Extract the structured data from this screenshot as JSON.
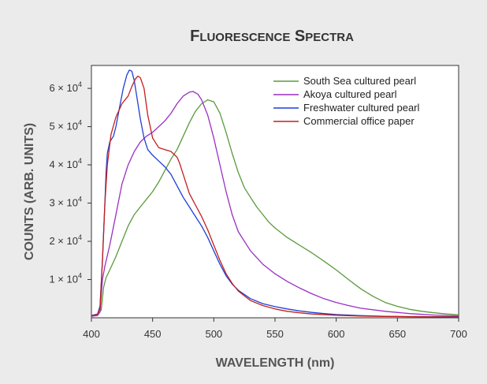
{
  "chart_data": {
    "type": "line",
    "title": "FLUORESCENCE SPECTRA",
    "xlabel": "WAVELENGTH (nm)",
    "ylabel": "COUNTS (ARB. UNITS)",
    "xlim": [
      400,
      700
    ],
    "ylim": [
      0,
      66000
    ],
    "x_ticks": [
      "400",
      "450",
      "500",
      "550",
      "600",
      "650",
      "700"
    ],
    "y_ticks": [
      {
        "value": 10000,
        "mantissa": "1 × 10",
        "exp": "4"
      },
      {
        "value": 20000,
        "mantissa": "2 × 10",
        "exp": "4"
      },
      {
        "value": 30000,
        "mantissa": "3 × 10",
        "exp": "4"
      },
      {
        "value": 40000,
        "mantissa": "4 × 10",
        "exp": "4"
      },
      {
        "value": 50000,
        "mantissa": "5 × 10",
        "exp": "4"
      },
      {
        "value": 60000,
        "mantissa": "6 × 10",
        "exp": "4"
      }
    ],
    "grid": false,
    "legend_position": "top-right",
    "series": [
      {
        "name": "South Sea cultured pearl",
        "color": "#5a9a3c",
        "points": [
          [
            400,
            500
          ],
          [
            405,
            800
          ],
          [
            408,
            2000
          ],
          [
            410,
            8000
          ],
          [
            412,
            10500
          ],
          [
            415,
            12500
          ],
          [
            420,
            16000
          ],
          [
            425,
            20000
          ],
          [
            430,
            24000
          ],
          [
            435,
            27000
          ],
          [
            440,
            29000
          ],
          [
            445,
            31000
          ],
          [
            450,
            33000
          ],
          [
            455,
            35500
          ],
          [
            460,
            38500
          ],
          [
            465,
            41500
          ],
          [
            470,
            44000
          ],
          [
            475,
            47500
          ],
          [
            480,
            51000
          ],
          [
            485,
            54000
          ],
          [
            490,
            56000
          ],
          [
            495,
            57000
          ],
          [
            500,
            56500
          ],
          [
            505,
            53500
          ],
          [
            510,
            48500
          ],
          [
            515,
            43000
          ],
          [
            520,
            38000
          ],
          [
            525,
            34000
          ],
          [
            530,
            31500
          ],
          [
            535,
            29000
          ],
          [
            540,
            27000
          ],
          [
            545,
            25000
          ],
          [
            550,
            23500
          ],
          [
            560,
            21000
          ],
          [
            570,
            19000
          ],
          [
            580,
            17000
          ],
          [
            590,
            14800
          ],
          [
            600,
            12500
          ],
          [
            610,
            10000
          ],
          [
            620,
            7600
          ],
          [
            630,
            5600
          ],
          [
            640,
            4000
          ],
          [
            650,
            3000
          ],
          [
            660,
            2200
          ],
          [
            670,
            1700
          ],
          [
            680,
            1300
          ],
          [
            690,
            1000
          ],
          [
            700,
            800
          ]
        ]
      },
      {
        "name": "Akoya cultured pearl",
        "color": "#9a2fc4",
        "points": [
          [
            400,
            400
          ],
          [
            405,
            600
          ],
          [
            407,
            1500
          ],
          [
            409,
            10000
          ],
          [
            411,
            13500
          ],
          [
            415,
            19000
          ],
          [
            420,
            27000
          ],
          [
            425,
            35000
          ],
          [
            430,
            40000
          ],
          [
            435,
            43500
          ],
          [
            440,
            46000
          ],
          [
            445,
            47500
          ],
          [
            450,
            48500
          ],
          [
            455,
            50000
          ],
          [
            460,
            51500
          ],
          [
            465,
            53500
          ],
          [
            470,
            56000
          ],
          [
            475,
            58000
          ],
          [
            480,
            59000
          ],
          [
            483,
            59200
          ],
          [
            487,
            58500
          ],
          [
            490,
            57000
          ],
          [
            495,
            53000
          ],
          [
            500,
            47000
          ],
          [
            505,
            40000
          ],
          [
            510,
            33000
          ],
          [
            515,
            27000
          ],
          [
            520,
            22500
          ],
          [
            530,
            17500
          ],
          [
            540,
            14000
          ],
          [
            550,
            11500
          ],
          [
            560,
            9500
          ],
          [
            570,
            7800
          ],
          [
            580,
            6300
          ],
          [
            590,
            5000
          ],
          [
            600,
            4000
          ],
          [
            610,
            3200
          ],
          [
            620,
            2500
          ],
          [
            640,
            1700
          ],
          [
            660,
            1100
          ],
          [
            680,
            700
          ],
          [
            700,
            500
          ]
        ]
      },
      {
        "name": "Freshwater cultured pearl",
        "color": "#1f3fd4",
        "points": [
          [
            400,
            600
          ],
          [
            405,
            1000
          ],
          [
            407,
            3000
          ],
          [
            409,
            15000
          ],
          [
            411,
            30000
          ],
          [
            412,
            38000
          ],
          [
            413,
            43000
          ],
          [
            415,
            46000
          ],
          [
            418,
            47500
          ],
          [
            420,
            50000
          ],
          [
            423,
            55000
          ],
          [
            426,
            60000
          ],
          [
            429,
            63500
          ],
          [
            431,
            64800
          ],
          [
            433,
            64500
          ],
          [
            435,
            62000
          ],
          [
            437,
            58000
          ],
          [
            440,
            52000
          ],
          [
            443,
            47000
          ],
          [
            446,
            44000
          ],
          [
            450,
            42500
          ],
          [
            455,
            41000
          ],
          [
            460,
            39500
          ],
          [
            465,
            37500
          ],
          [
            470,
            34500
          ],
          [
            475,
            31500
          ],
          [
            480,
            29000
          ],
          [
            485,
            26500
          ],
          [
            490,
            24000
          ],
          [
            495,
            21000
          ],
          [
            500,
            17500
          ],
          [
            505,
            14000
          ],
          [
            510,
            11000
          ],
          [
            515,
            8800
          ],
          [
            520,
            7200
          ],
          [
            530,
            5000
          ],
          [
            540,
            3700
          ],
          [
            550,
            2900
          ],
          [
            560,
            2300
          ],
          [
            570,
            1800
          ],
          [
            580,
            1400
          ],
          [
            590,
            1100
          ],
          [
            600,
            850
          ],
          [
            620,
            550
          ],
          [
            640,
            400
          ],
          [
            660,
            300
          ],
          [
            700,
            250
          ]
        ]
      },
      {
        "name": "Commercial office paper",
        "color": "#c41e1e",
        "points": [
          [
            400,
            500
          ],
          [
            405,
            900
          ],
          [
            407,
            2500
          ],
          [
            409,
            15000
          ],
          [
            411,
            30000
          ],
          [
            413,
            40000
          ],
          [
            416,
            48000
          ],
          [
            420,
            52500
          ],
          [
            425,
            56000
          ],
          [
            430,
            58000
          ],
          [
            433,
            60500
          ],
          [
            436,
            62500
          ],
          [
            438,
            63200
          ],
          [
            440,
            62800
          ],
          [
            443,
            60000
          ],
          [
            446,
            53000
          ],
          [
            450,
            47000
          ],
          [
            455,
            44500
          ],
          [
            460,
            44000
          ],
          [
            465,
            43500
          ],
          [
            470,
            42000
          ],
          [
            472,
            40500
          ],
          [
            475,
            37500
          ],
          [
            480,
            32500
          ],
          [
            485,
            29500
          ],
          [
            490,
            26500
          ],
          [
            495,
            23000
          ],
          [
            500,
            19000
          ],
          [
            505,
            15000
          ],
          [
            510,
            11500
          ],
          [
            515,
            9000
          ],
          [
            520,
            7000
          ],
          [
            530,
            4500
          ],
          [
            540,
            3200
          ],
          [
            550,
            2300
          ],
          [
            560,
            1700
          ],
          [
            570,
            1300
          ],
          [
            580,
            1000
          ],
          [
            600,
            650
          ],
          [
            620,
            450
          ],
          [
            640,
            350
          ],
          [
            660,
            280
          ],
          [
            700,
            200
          ]
        ]
      }
    ]
  }
}
